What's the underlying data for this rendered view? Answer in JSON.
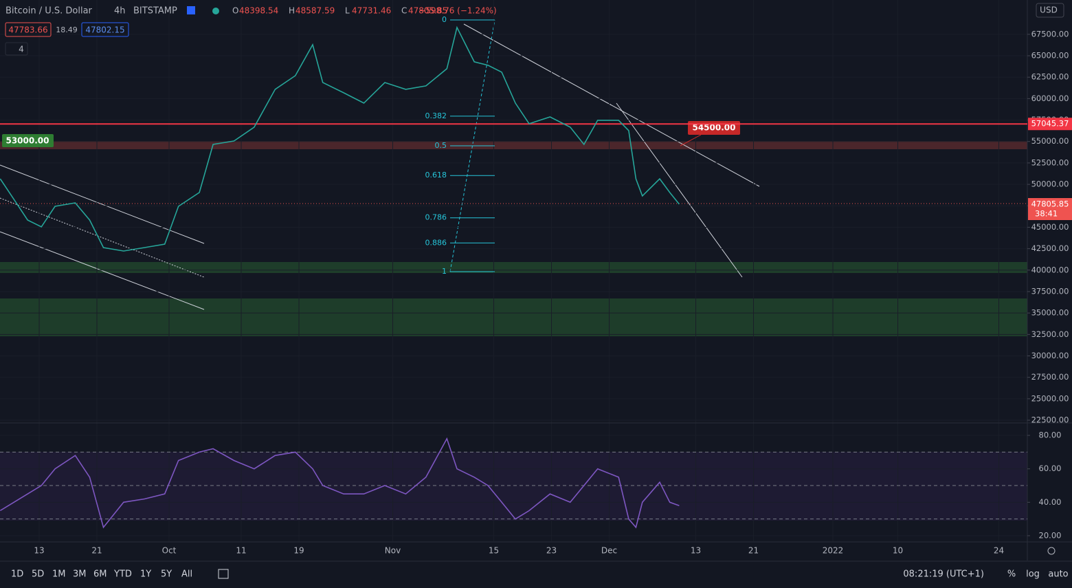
{
  "header": {
    "symbol": "Bitcoin / U.S. Dollar",
    "interval": "4h",
    "exchange": "BITSTAMP",
    "ohlc": [
      {
        "key": "O",
        "value": 48398.54
      },
      {
        "key": "H",
        "value": 48587.59
      },
      {
        "key": "L",
        "value": 47731.46
      },
      {
        "key": "C",
        "value": 47805.85
      }
    ],
    "change": "−598.76 (−1.24%)",
    "bid": 47783.66,
    "spread": 18.49,
    "ask": 47802.15,
    "indicators": 4,
    "currency": "USD"
  },
  "annotations": {
    "left_label": "53000.00",
    "target_label": "54500.00",
    "hline": 57045.37,
    "hline_label": "57045.37",
    "last_price": "47805.85",
    "countdown": "38:41"
  },
  "fib": {
    "high": 69175,
    "low": 39820,
    "levels": [
      0,
      0.382,
      0.5,
      0.618,
      0.786,
      0.886,
      1
    ]
  },
  "chart_data": [
    {
      "type": "line",
      "color": "#26a69a",
      "x": [
        -5.4,
        -3.5,
        -1.6,
        0.3,
        2.2,
        5.0,
        7.0,
        8.9,
        11.7,
        14.6,
        17.4,
        19.3,
        22.2,
        24.1,
        27.0,
        29.8,
        32.7,
        35.5,
        37.9,
        39.3,
        42.2,
        45.0,
        47.9,
        50.8,
        53.6,
        56.5,
        57.9,
        60.3,
        62.2,
        64.1,
        66.0,
        67.9,
        70.8,
        73.6,
        75.5,
        77.4,
        80.3,
        81.7,
        82.7,
        83.6,
        86.0,
        87.4,
        88.7
      ],
      "values": [
        50650,
        48250,
        45840,
        45040,
        47440,
        47840,
        45840,
        42630,
        42230,
        42630,
        43030,
        47440,
        49050,
        54660,
        55060,
        56670,
        61080,
        62680,
        66290,
        61880,
        60680,
        59480,
        61880,
        61080,
        61480,
        63490,
        68300,
        64290,
        63890,
        63090,
        59480,
        57070,
        57870,
        56670,
        54660,
        57470,
        57470,
        56270,
        50650,
        48650,
        50650,
        49050,
        47690
      ],
      "xlim": [
        -5.43,
        136.95
      ],
      "ylim": [
        22180,
        71500
      ],
      "xticks": [
        {
          "value": 0,
          "label": "13"
        },
        {
          "value": 8,
          "label": "21"
        },
        {
          "value": 18,
          "label": "Oct"
        },
        {
          "value": 28,
          "label": "11"
        },
        {
          "value": 36,
          "label": "19"
        },
        {
          "value": 49,
          "label": "Nov"
        },
        {
          "value": 63,
          "label": "15"
        },
        {
          "value": 71,
          "label": "23"
        },
        {
          "value": 79,
          "label": "Dec"
        },
        {
          "value": 91,
          "label": "13"
        },
        {
          "value": 99,
          "label": "21"
        },
        {
          "value": 110,
          "label": "2022"
        },
        {
          "value": 119,
          "label": "10"
        },
        {
          "value": 133,
          "label": "24"
        }
      ],
      "yticks": [
        {
          "value": 22500,
          "label": "22500.00"
        },
        {
          "value": 25000,
          "label": "25000.00"
        },
        {
          "value": 27500,
          "label": "27500.00"
        },
        {
          "value": 30000,
          "label": "30000.00"
        },
        {
          "value": 32500,
          "label": "32500.00"
        },
        {
          "value": 35000,
          "label": "35000.00"
        },
        {
          "value": 37500,
          "label": "37500.00"
        },
        {
          "value": 40000,
          "label": "40000.00"
        },
        {
          "value": 42500,
          "label": "42500.00"
        },
        {
          "value": 45000,
          "label": "45000.00"
        },
        {
          "value": 47500,
          "label": "47500.00"
        },
        {
          "value": 50000,
          "label": "50000.00"
        },
        {
          "value": 52500,
          "label": "52500.00"
        },
        {
          "value": 55000,
          "label": "55000.00"
        },
        {
          "value": 57500,
          "label": "57500.00"
        },
        {
          "value": 60000,
          "label": "60000.00"
        },
        {
          "value": 62500,
          "label": "62500.00"
        },
        {
          "value": 65000,
          "label": "65000.00"
        },
        {
          "value": 67500,
          "label": "67500.00"
        }
      ]
    },
    {
      "type": "line",
      "color": "#7e57c2",
      "x": [
        -5.4,
        -3.5,
        -1.6,
        0.3,
        2.2,
        5.0,
        7.0,
        8.9,
        11.7,
        14.6,
        17.4,
        19.3,
        22.2,
        24.1,
        27.0,
        29.8,
        32.7,
        35.5,
        37.9,
        39.3,
        42.2,
        45.0,
        47.9,
        50.8,
        53.6,
        56.5,
        57.9,
        60.3,
        62.2,
        64.1,
        66.0,
        67.9,
        70.8,
        73.6,
        75.5,
        77.4,
        80.3,
        81.7,
        82.7,
        83.6,
        86.0,
        87.4,
        88.7
      ],
      "values": [
        35,
        40,
        45,
        50,
        60,
        68,
        55,
        25,
        40,
        42,
        45,
        65,
        70,
        72,
        65,
        60,
        68,
        70,
        60,
        50,
        45,
        45,
        50,
        45,
        55,
        78,
        60,
        55,
        50,
        40,
        30,
        35,
        45,
        40,
        50,
        60,
        55,
        30,
        25,
        40,
        52,
        40,
        38
      ],
      "xlim": [
        -5.43,
        136.95
      ],
      "ylim": [
        16.7,
        86.2
      ],
      "bands": [
        70,
        50,
        30
      ],
      "yticks": [
        {
          "value": 20,
          "label": "20.00"
        },
        {
          "value": 40,
          "label": "40.00"
        },
        {
          "value": 60,
          "label": "60.00"
        },
        {
          "value": 80,
          "label": "80.00"
        }
      ]
    }
  ],
  "toolbar": {
    "ranges": [
      "1D",
      "5D",
      "1M",
      "3M",
      "6M",
      "YTD",
      "1Y",
      "5Y",
      "All"
    ],
    "clock": "08:21:19 (UTC+1)",
    "options": [
      "%",
      "log",
      "auto"
    ]
  }
}
